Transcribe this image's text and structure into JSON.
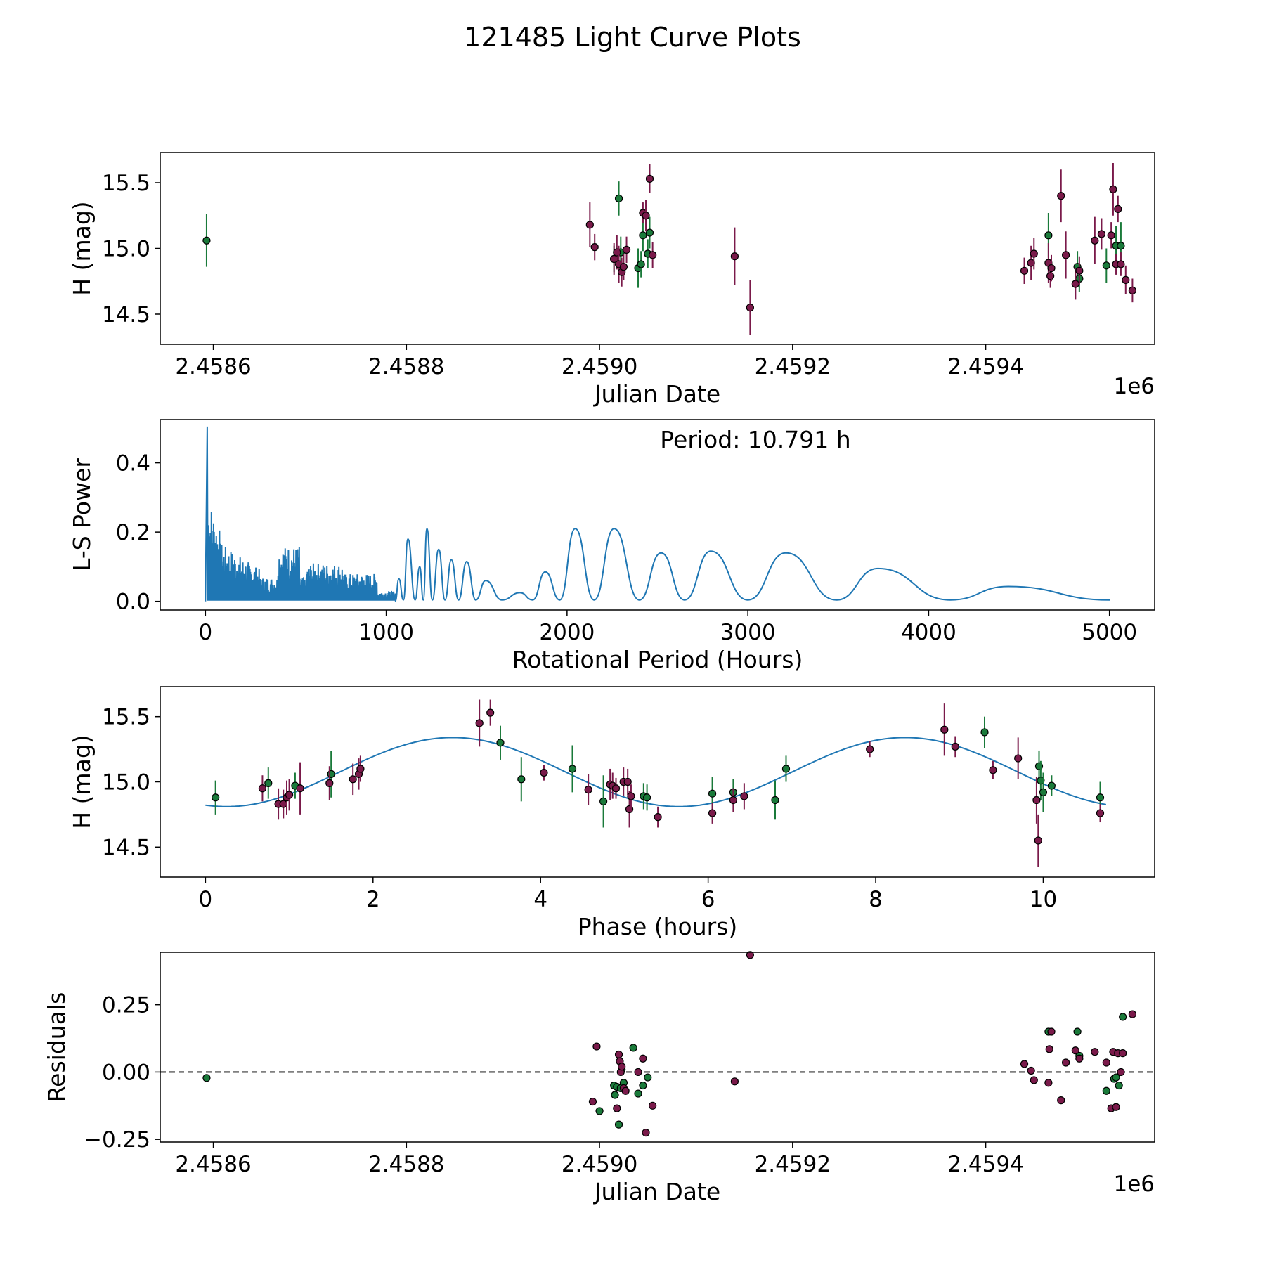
{
  "title": "121485 Light Curve Plots",
  "colors": {
    "band_g": "#1a7a3a",
    "band_r": "#7a1a4a",
    "model_line": "#1f77b4",
    "zero_line": "#000000"
  },
  "chart_data": [
    {
      "id": "lightcurve",
      "type": "scatter",
      "xlabel": "Julian Date",
      "ylabel": "H (mag)",
      "offset_label": "1e6",
      "xlim": [
        2458545,
        2459575
      ],
      "ylim": [
        14.27,
        15.73
      ],
      "xticks": [
        2458600,
        2458800,
        2459000,
        2459200,
        2459400
      ],
      "xtick_labels": [
        "2.4586",
        "2.4588",
        "2.4590",
        "2.4592",
        "2.4594"
      ],
      "yticks": [
        14.5,
        15.0,
        15.5
      ],
      "ytick_labels": [
        "14.5",
        "15.0",
        "15.5"
      ],
      "series": [
        {
          "name": "g",
          "color": "#1a7a3a",
          "x": [
            2458593,
            2459015,
            2459020,
            2459022,
            2459040,
            2459043,
            2459045,
            2459050,
            2459052
          ],
          "y": [
            15.06,
            14.92,
            15.38,
            14.97,
            14.85,
            14.88,
            15.1,
            14.96,
            15.12
          ],
          "err": [
            0.2,
            0.1,
            0.13,
            0.12,
            0.15,
            0.1,
            0.12,
            0.11,
            0.12
          ]
        },
        {
          "name": "r",
          "color": "#7a1a4a",
          "x": [
            2458990,
            2458995,
            2459015,
            2459018,
            2459020,
            2459023,
            2459025,
            2459028,
            2459045,
            2459048,
            2459052,
            2459055,
            2459140,
            2459156
          ],
          "y": [
            15.18,
            15.01,
            14.92,
            14.97,
            14.88,
            14.82,
            14.86,
            14.99,
            15.27,
            15.25,
            15.53,
            14.95,
            14.94,
            14.55
          ],
          "err": [
            0.17,
            0.1,
            0.12,
            0.13,
            0.14,
            0.11,
            0.1,
            0.1,
            0.08,
            0.12,
            0.11,
            0.1,
            0.22,
            0.21
          ]
        },
        {
          "name": "g2",
          "color": "#1a7a3a",
          "x": [
            2459465,
            2459495,
            2459497,
            2459525,
            2459535,
            2459540
          ],
          "y": [
            15.1,
            14.86,
            14.77,
            14.87,
            15.02,
            15.02
          ],
          "err": [
            0.17,
            0.12,
            0.1,
            0.13,
            0.15,
            0.18
          ]
        },
        {
          "name": "r2",
          "color": "#7a1a4a",
          "x": [
            2459440,
            2459447,
            2459450,
            2459465,
            2459467,
            2459468,
            2459478,
            2459483,
            2459493,
            2459497,
            2459513,
            2459520,
            2459530,
            2459532,
            2459535,
            2459537,
            2459540,
            2459545,
            2459552
          ],
          "y": [
            14.83,
            14.89,
            14.96,
            14.89,
            14.79,
            14.85,
            15.4,
            14.95,
            14.73,
            14.83,
            15.06,
            15.11,
            15.1,
            15.45,
            14.88,
            15.3,
            14.88,
            14.76,
            14.68
          ],
          "err": [
            0.1,
            0.13,
            0.12,
            0.15,
            0.09,
            0.1,
            0.2,
            0.18,
            0.12,
            0.11,
            0.18,
            0.12,
            0.1,
            0.2,
            0.08,
            0.1,
            0.09,
            0.11,
            0.09
          ]
        }
      ]
    },
    {
      "id": "periodogram",
      "type": "line",
      "xlabel": "Rotational Period (Hours)",
      "ylabel": "L-S Power",
      "annotation": "Period: 10.791 h",
      "xlim": [
        -250,
        5250
      ],
      "ylim": [
        -0.025,
        0.525
      ],
      "xticks": [
        0,
        1000,
        2000,
        3000,
        4000,
        5000
      ],
      "xtick_labels": [
        "0",
        "1000",
        "2000",
        "3000",
        "4000",
        "5000"
      ],
      "yticks": [
        0.0,
        0.2,
        0.4
      ],
      "ytick_labels": [
        "0.0",
        "0.2",
        "0.4"
      ],
      "peaks": [
        {
          "x": 1070,
          "y": 0.065
        },
        {
          "x": 1120,
          "y": 0.18
        },
        {
          "x": 1185,
          "y": 0.1
        },
        {
          "x": 1225,
          "y": 0.21
        },
        {
          "x": 1290,
          "y": 0.15
        },
        {
          "x": 1360,
          "y": 0.12
        },
        {
          "x": 1445,
          "y": 0.115
        },
        {
          "x": 1550,
          "y": 0.06
        },
        {
          "x": 1740,
          "y": 0.025
        },
        {
          "x": 1880,
          "y": 0.085
        },
        {
          "x": 2045,
          "y": 0.21
        },
        {
          "x": 2260,
          "y": 0.21
        },
        {
          "x": 2520,
          "y": 0.14
        },
        {
          "x": 2795,
          "y": 0.145
        },
        {
          "x": 3210,
          "y": 0.14
        },
        {
          "x": 3720,
          "y": 0.095
        },
        {
          "x": 4440,
          "y": 0.043
        }
      ],
      "troughs": [
        1095,
        1160,
        1205,
        1255,
        1325,
        1400,
        1495,
        1640,
        1810,
        1960,
        2150,
        2400,
        2650,
        3000,
        3490,
        4120,
        5000
      ],
      "end_point": {
        "x": 5000,
        "y": 0.007
      },
      "max_point": {
        "x": 10,
        "y": 0.505
      }
    },
    {
      "id": "phased",
      "type": "scatter",
      "xlabel": "Phase (hours)",
      "ylabel": "H (mag)",
      "xlim": [
        -0.54,
        11.33
      ],
      "ylim": [
        14.27,
        15.73
      ],
      "xticks": [
        0,
        2,
        4,
        6,
        8,
        10
      ],
      "xtick_labels": [
        "0",
        "2",
        "4",
        "6",
        "8",
        "10"
      ],
      "yticks": [
        14.5,
        15.0,
        15.5
      ],
      "ytick_labels": [
        "14.5",
        "15.0",
        "15.5"
      ],
      "model": {
        "mean": 15.075,
        "amplitude": 0.265,
        "period": 5.4,
        "peak_phase": 2.95,
        "x_end": 10.79
      },
      "series": [
        {
          "name": "g",
          "color": "#1a7a3a",
          "x": [
            0.12,
            0.75,
            1.07,
            1.5,
            3.52,
            3.77,
            4.38,
            4.75,
            5.23,
            5.27,
            6.05,
            6.3,
            6.8,
            6.93,
            9.3,
            9.95,
            9.97,
            10.0,
            10.1,
            10.68
          ],
          "y": [
            14.88,
            14.99,
            14.97,
            15.06,
            15.3,
            15.02,
            15.1,
            14.85,
            14.89,
            14.88,
            14.91,
            14.92,
            14.86,
            15.1,
            15.38,
            15.12,
            15.01,
            14.92,
            14.97,
            14.88
          ],
          "err": [
            0.13,
            0.12,
            0.1,
            0.18,
            0.13,
            0.17,
            0.18,
            0.2,
            0.1,
            0.1,
            0.13,
            0.1,
            0.15,
            0.1,
            0.12,
            0.12,
            0.15,
            0.15,
            0.08,
            0.12
          ]
        },
        {
          "name": "r",
          "color": "#7a1a4a",
          "x": [
            0.68,
            0.87,
            0.93,
            0.97,
            1.0,
            1.13,
            1.48,
            1.76,
            1.83,
            1.85,
            3.27,
            3.4,
            4.04,
            4.57,
            4.83,
            4.86,
            4.9,
            4.99,
            5.04,
            5.06,
            5.08,
            5.4,
            6.05,
            6.3,
            6.43,
            7.93,
            8.82,
            8.95,
            9.4,
            9.7,
            9.92,
            9.94,
            10.68
          ],
          "y": [
            14.95,
            14.83,
            14.83,
            14.88,
            14.9,
            14.95,
            14.99,
            15.02,
            15.06,
            15.1,
            15.45,
            15.53,
            15.07,
            14.94,
            14.98,
            14.97,
            14.95,
            15.0,
            15.0,
            14.79,
            14.89,
            14.73,
            14.76,
            14.86,
            14.89,
            15.25,
            15.4,
            15.27,
            15.09,
            15.18,
            14.86,
            14.55,
            14.76
          ],
          "err": [
            0.1,
            0.12,
            0.11,
            0.13,
            0.12,
            0.2,
            0.13,
            0.12,
            0.12,
            0.1,
            0.18,
            0.1,
            0.06,
            0.12,
            0.12,
            0.1,
            0.08,
            0.11,
            0.1,
            0.14,
            0.09,
            0.08,
            0.08,
            0.09,
            0.1,
            0.06,
            0.2,
            0.08,
            0.07,
            0.16,
            0.18,
            0.2,
            0.07
          ]
        }
      ]
    },
    {
      "id": "residuals",
      "type": "scatter",
      "xlabel": "Julian Date",
      "ylabel": "Residuals",
      "offset_label": "1e6",
      "xlim": [
        2458545,
        2459575
      ],
      "ylim": [
        -0.26,
        0.445
      ],
      "xticks": [
        2458600,
        2458800,
        2459000,
        2459200,
        2459400
      ],
      "xtick_labels": [
        "2.4586",
        "2.4588",
        "2.4590",
        "2.4592",
        "2.4594"
      ],
      "yticks": [
        -0.25,
        0.0,
        0.25
      ],
      "ytick_labels": [
        "−0.25",
        "0.00",
        "0.25"
      ],
      "zero_line": 0,
      "series": [
        {
          "name": "g",
          "color": "#1a7a3a",
          "x": [
            2458593,
            2459000,
            2459015,
            2459016,
            2459018,
            2459020,
            2459022,
            2459023,
            2459025,
            2459035,
            2459040,
            2459045,
            2459050,
            2459465,
            2459495,
            2459497,
            2459525,
            2459533,
            2459535,
            2459538,
            2459542
          ],
          "y": [
            -0.022,
            -0.145,
            -0.05,
            -0.085,
            -0.055,
            -0.195,
            -0.06,
            0.01,
            -0.04,
            0.09,
            -0.08,
            -0.05,
            -0.02,
            0.15,
            0.15,
            0.06,
            -0.07,
            -0.025,
            -0.02,
            -0.05,
            0.205
          ]
        },
        {
          "name": "r",
          "color": "#7a1a4a",
          "x": [
            2458993,
            2458997,
            2459018,
            2459020,
            2459021,
            2459022,
            2459023,
            2459025,
            2459027,
            2459040,
            2459045,
            2459048,
            2459055,
            2459140,
            2459156,
            2459440,
            2459447,
            2459450,
            2459465,
            2459466,
            2459468,
            2459478,
            2459483,
            2459493,
            2459497,
            2459513,
            2459525,
            2459530,
            2459532,
            2459535,
            2459537,
            2459540,
            2459542,
            2459552
          ],
          "y": [
            -0.11,
            0.095,
            -0.135,
            0.065,
            0.04,
            0.0,
            0.02,
            -0.06,
            -0.07,
            0.0,
            0.05,
            -0.225,
            -0.125,
            -0.035,
            0.435,
            0.03,
            0.005,
            -0.03,
            -0.04,
            0.085,
            0.15,
            -0.105,
            0.035,
            0.08,
            0.05,
            0.075,
            0.035,
            -0.135,
            0.075,
            -0.13,
            0.07,
            0.0,
            0.07,
            0.215
          ]
        }
      ]
    }
  ]
}
